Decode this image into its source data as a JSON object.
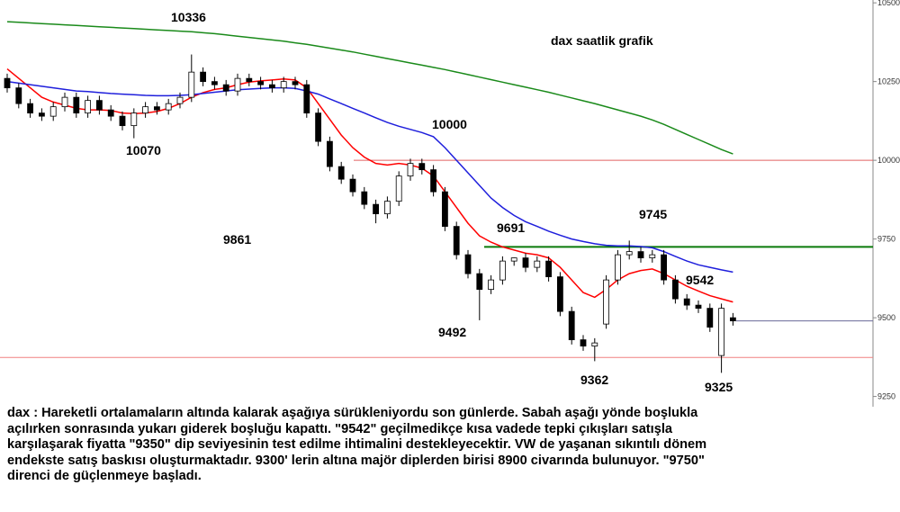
{
  "chart_data": {
    "type": "candlestick",
    "title": "dax saatlik grafik",
    "ylim": [
      9166,
      10509
    ],
    "yticks": [
      9250,
      9500,
      9750,
      10000,
      10250,
      10500
    ],
    "candles": {
      "open": [
        10260,
        10230,
        10180,
        10150,
        10140,
        10170,
        10200,
        10150,
        10190,
        10160,
        10140,
        10110,
        10150,
        10170,
        10160,
        10180,
        10200,
        10280,
        10250,
        10240,
        10220,
        10260,
        10250,
        10240,
        10230,
        10250,
        10240,
        10150,
        10060,
        9980,
        9940,
        9900,
        9860,
        9830,
        9870,
        9950,
        9990,
        9970,
        9900,
        9790,
        9700,
        9640,
        9590,
        9620,
        9680,
        9690,
        9660,
        9680,
        9630,
        9520,
        9430,
        9410,
        9480,
        9620,
        9700,
        9710,
        9690,
        9700,
        9620,
        9560,
        9540,
        9530,
        9380,
        9500
      ],
      "high": [
        10275,
        10245,
        10195,
        10165,
        10185,
        10215,
        10215,
        10205,
        10205,
        10175,
        10155,
        10165,
        10185,
        10185,
        10195,
        10215,
        10336,
        10295,
        10265,
        10255,
        10275,
        10275,
        10265,
        10255,
        10265,
        10265,
        10255,
        10165,
        10075,
        9995,
        9955,
        9915,
        9875,
        9885,
        9965,
        10005,
        10005,
        9985,
        9915,
        9805,
        9715,
        9655,
        9635,
        9695,
        9691,
        9705,
        9695,
        9695,
        9645,
        9535,
        9445,
        9435,
        9635,
        9715,
        9745,
        9725,
        9715,
        9715,
        9635,
        9575,
        9555,
        9545,
        9545,
        9515
      ],
      "low": [
        10215,
        10165,
        10135,
        10125,
        10125,
        10155,
        10135,
        10135,
        10145,
        10125,
        10095,
        10070,
        10135,
        10145,
        10145,
        10165,
        10185,
        10235,
        10225,
        10205,
        10205,
        10235,
        10225,
        10215,
        10215,
        10225,
        10135,
        10045,
        9965,
        9925,
        9885,
        9845,
        9800,
        9815,
        9855,
        9935,
        9955,
        9885,
        9775,
        9685,
        9625,
        9492,
        9575,
        9605,
        9665,
        9645,
        9645,
        9615,
        9505,
        9415,
        9395,
        9362,
        9465,
        9605,
        9685,
        9675,
        9675,
        9605,
        9545,
        9525,
        9515,
        9455,
        9325,
        9475
      ],
      "close": [
        10230,
        10180,
        10150,
        10140,
        10170,
        10200,
        10150,
        10190,
        10160,
        10140,
        10110,
        10150,
        10170,
        10160,
        10180,
        10200,
        10280,
        10250,
        10240,
        10220,
        10260,
        10250,
        10240,
        10230,
        10250,
        10240,
        10150,
        10060,
        9980,
        9940,
        9900,
        9860,
        9830,
        9870,
        9950,
        9990,
        9970,
        9900,
        9790,
        9700,
        9640,
        9590,
        9620,
        9680,
        9690,
        9660,
        9680,
        9630,
        9520,
        9430,
        9410,
        9420,
        9620,
        9700,
        9710,
        9690,
        9700,
        9620,
        9560,
        9540,
        9530,
        9470,
        9530,
        9490
      ]
    },
    "series": [
      {
        "color": "#ff0000",
        "values": [
          10290,
          10260,
          10230,
          10200,
          10185,
          10175,
          10165,
          10160,
          10160,
          10158,
          10150,
          10148,
          10150,
          10155,
          10165,
          10180,
          10200,
          10215,
          10225,
          10230,
          10240,
          10248,
          10252,
          10255,
          10258,
          10255,
          10230,
          10180,
          10130,
          10080,
          10040,
          10010,
          9990,
          9985,
          9990,
          9985,
          9975,
          9950,
          9900,
          9850,
          9800,
          9760,
          9740,
          9725,
          9715,
          9705,
          9700,
          9690,
          9660,
          9620,
          9580,
          9565,
          9590,
          9620,
          9640,
          9650,
          9655,
          9640,
          9620,
          9600,
          9585,
          9570,
          9560,
          9550
        ]
      },
      {
        "color": "#1f1fdc",
        "values": [
          10250,
          10245,
          10240,
          10235,
          10230,
          10225,
          10220,
          10218,
          10215,
          10212,
          10210,
          10208,
          10206,
          10205,
          10205,
          10206,
          10208,
          10212,
          10216,
          10220,
          10224,
          10226,
          10228,
          10230,
          10230,
          10228,
          10220,
          10210,
          10195,
          10180,
          10165,
          10150,
          10135,
          10120,
          10108,
          10098,
          10088,
          10075,
          10040,
          10000,
          9960,
          9920,
          9880,
          9850,
          9825,
          9805,
          9790,
          9775,
          9762,
          9750,
          9742,
          9735,
          9730,
          9728,
          9728,
          9726,
          9722,
          9710,
          9695,
          9680,
          9668,
          9660,
          9652,
          9645
        ]
      },
      {
        "color": "#1a8a1a",
        "values": [
          10440,
          10438,
          10436,
          10434,
          10432,
          10430,
          10428,
          10426,
          10424,
          10422,
          10420,
          10418,
          10416,
          10414,
          10412,
          10410,
          10408,
          10405,
          10402,
          10398,
          10394,
          10390,
          10386,
          10382,
          10378,
          10373,
          10368,
          10362,
          10356,
          10350,
          10344,
          10337,
          10330,
          10323,
          10316,
          10309,
          10302,
          10295,
          10288,
          10280,
          10272,
          10264,
          10256,
          10248,
          10240,
          10232,
          10224,
          10216,
          10207,
          10198,
          10189,
          10180,
          10170,
          10160,
          10150,
          10140,
          10128,
          10114,
          10098,
          10082,
          10066,
          10050,
          10034,
          10020
        ]
      }
    ],
    "levels": [
      {
        "value": 10000,
        "color": "#e06060"
      },
      {
        "value": 9725,
        "color": "#0a7a0a"
      },
      {
        "value": 9374,
        "color": "#f08080"
      },
      {
        "value": 9490,
        "color": "#6a6a9a"
      }
    ],
    "annotations": [
      "10336",
      "10070",
      "9861",
      "10000",
      "9691",
      "9492",
      "9745",
      "9542",
      "9362",
      "9325"
    ]
  },
  "commentary": [
    "dax : Hareketli ortalamaların altında kalarak aşağıya sürükleniyordu son günlerde. Sabah aşağı yönde boşlukla",
    "açılırken sonrasında yukarı giderek boşluğu kapattı. \"9542\" geçilmedikçe kısa vadede tepki çıkışları satışla",
    "karşılaşarak fiyatta \"9350\" dip seviyesinin test edilme ihtimalini destekleyecektir. VW de yaşanan sıkıntılı dönem",
    "endekste satış baskısı oluşturmaktadır. 9300' lerin altına majör diplerden birisi 8900 civarında bulunuyor. \"9750\"",
    "direnci de güçlenmeye başladı."
  ]
}
